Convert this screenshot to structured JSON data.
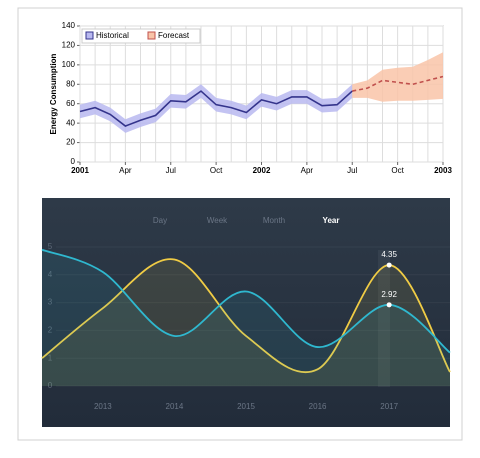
{
  "chart_data": [
    {
      "type": "band-line",
      "ylabel": "Energy Consumption",
      "categories": [
        "2001",
        null,
        null,
        "Apr",
        null,
        null,
        "Jul",
        null,
        null,
        "Oct",
        null,
        null,
        "2002",
        null,
        null,
        "Apr",
        null,
        null,
        "Jul",
        null,
        null,
        "Oct",
        null,
        null,
        "2003"
      ],
      "series": [
        {
          "name": "Historical",
          "color": "#34348c",
          "band_color": "#b9b9f0",
          "dashed": false,
          "values": [
            52,
            56,
            49,
            37,
            43,
            48,
            63,
            62,
            73,
            59,
            56,
            51,
            64,
            60,
            67,
            67,
            58,
            59,
            73,
            null,
            null,
            null,
            null,
            null,
            null
          ],
          "lower": [
            45,
            49,
            42,
            30,
            36,
            41,
            56,
            55,
            66,
            52,
            49,
            44,
            57,
            53,
            60,
            60,
            51,
            52,
            66,
            null,
            null,
            null,
            null,
            null,
            null
          ],
          "upper": [
            59,
            63,
            56,
            44,
            50,
            55,
            70,
            69,
            80,
            66,
            63,
            58,
            71,
            67,
            74,
            74,
            65,
            66,
            80,
            null,
            null,
            null,
            null,
            null,
            null
          ]
        },
        {
          "name": "Forecast",
          "color": "#c0504d",
          "band_color": "#f9c4a8",
          "dashed": true,
          "values": [
            null,
            null,
            null,
            null,
            null,
            null,
            null,
            null,
            null,
            null,
            null,
            null,
            null,
            null,
            null,
            null,
            null,
            null,
            73,
            76,
            84,
            82,
            80,
            84,
            88
          ],
          "lower": [
            null,
            null,
            null,
            null,
            null,
            null,
            null,
            null,
            null,
            null,
            null,
            null,
            null,
            null,
            null,
            null,
            null,
            null,
            66,
            66,
            62,
            63,
            63,
            64,
            65
          ],
          "upper": [
            null,
            null,
            null,
            null,
            null,
            null,
            null,
            null,
            null,
            null,
            null,
            null,
            null,
            null,
            null,
            null,
            null,
            null,
            80,
            84,
            95,
            97,
            98,
            105,
            113
          ]
        }
      ],
      "ylim": [
        0,
        140
      ],
      "yticks": [
        0,
        20,
        40,
        60,
        80,
        100,
        120,
        140
      ],
      "grid": true,
      "legend": "top-left"
    },
    {
      "type": "spline",
      "tabs": [
        "Day",
        "Week",
        "Month",
        "Year"
      ],
      "active_tab": 3,
      "x": [
        2012.15,
        2013,
        2014,
        2015,
        2016,
        2017,
        2017.85
      ],
      "xlim": [
        2012.15,
        2017.85
      ],
      "xticks": [
        2013,
        2014,
        2015,
        2016,
        2017
      ],
      "ylim": [
        0,
        5
      ],
      "yticks": [
        0,
        1,
        2,
        3,
        4,
        5
      ],
      "grid": true,
      "series": [
        {
          "color": "#f0cc45",
          "values": [
            1.0,
            2.8,
            4.55,
            1.8,
            0.6,
            4.35,
            0.5
          ],
          "value_labels": [
            null,
            null,
            null,
            null,
            null,
            "4.35",
            null
          ]
        },
        {
          "color": "#2fb8cf",
          "values": [
            4.9,
            4.1,
            1.8,
            3.4,
            1.4,
            2.92,
            1.2
          ],
          "value_labels": [
            null,
            null,
            null,
            null,
            null,
            "2.92",
            null
          ]
        }
      ]
    }
  ]
}
